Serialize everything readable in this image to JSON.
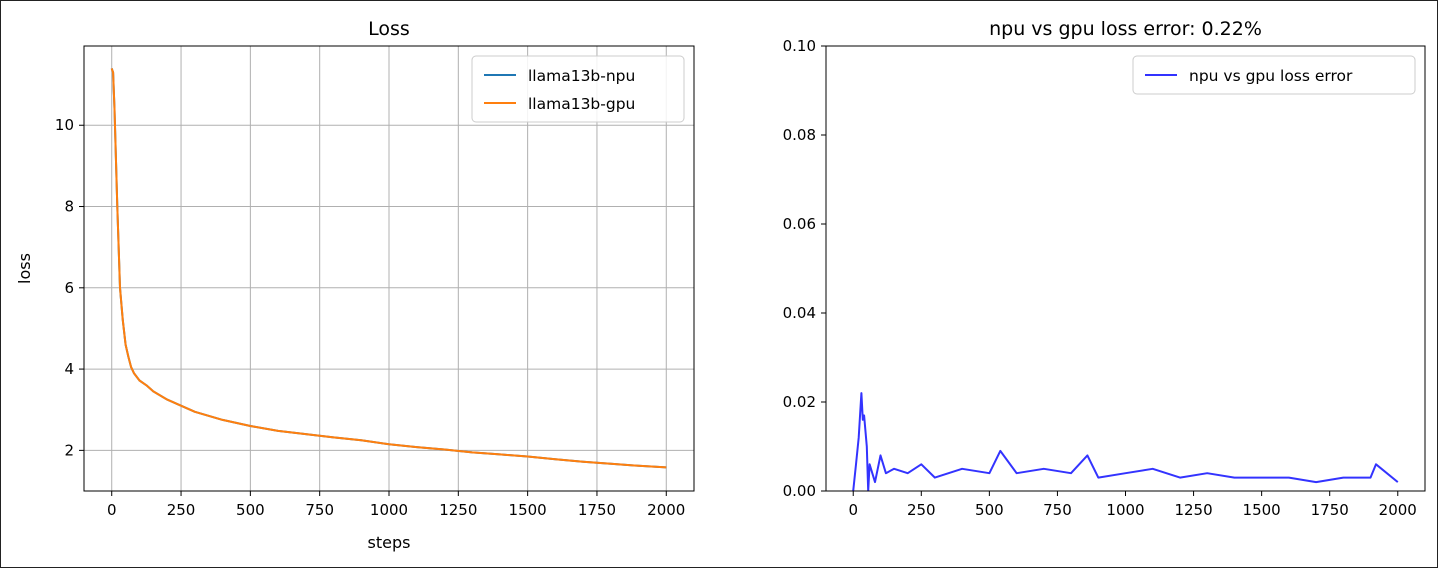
{
  "chart_data": [
    {
      "type": "line",
      "title": "Loss",
      "xlabel": "steps",
      "ylabel": "loss",
      "xlim": [
        -100,
        2100
      ],
      "ylim": [
        1.0,
        11.95
      ],
      "xticks": [
        0,
        250,
        500,
        750,
        1000,
        1250,
        1500,
        1750,
        2000
      ],
      "xtick_labels": [
        "0",
        "250",
        "500",
        "750",
        "1000",
        "1250",
        "1500",
        "1750",
        "2000"
      ],
      "yticks": [
        2,
        4,
        6,
        8,
        10
      ],
      "ytick_labels": [
        "2",
        "4",
        "6",
        "8",
        "10"
      ],
      "grid": true,
      "legend_position": "top-right",
      "series": [
        {
          "name": "llama13b-npu",
          "color": "#1f77b4",
          "x": [
            0,
            5,
            10,
            15,
            20,
            30,
            40,
            50,
            60,
            70,
            80,
            100,
            125,
            150,
            200,
            250,
            300,
            400,
            500,
            600,
            700,
            800,
            900,
            1000,
            1100,
            1200,
            1300,
            1400,
            1500,
            1600,
            1700,
            1800,
            1900,
            2000
          ],
          "y": [
            11.4,
            11.3,
            10.4,
            9.2,
            8.0,
            6.0,
            5.2,
            4.6,
            4.3,
            4.05,
            3.9,
            3.72,
            3.6,
            3.45,
            3.25,
            3.1,
            2.95,
            2.75,
            2.6,
            2.48,
            2.4,
            2.32,
            2.25,
            2.15,
            2.08,
            2.02,
            1.95,
            1.9,
            1.85,
            1.78,
            1.72,
            1.67,
            1.62,
            1.58
          ]
        },
        {
          "name": "llama13b-gpu",
          "color": "#ff7f0e",
          "x": [
            0,
            5,
            10,
            15,
            20,
            30,
            40,
            50,
            60,
            70,
            80,
            100,
            125,
            150,
            200,
            250,
            300,
            400,
            500,
            600,
            700,
            800,
            900,
            1000,
            1100,
            1200,
            1300,
            1400,
            1500,
            1600,
            1700,
            1800,
            1900,
            2000
          ],
          "y": [
            11.4,
            11.3,
            10.4,
            9.2,
            8.0,
            6.0,
            5.2,
            4.6,
            4.3,
            4.05,
            3.9,
            3.72,
            3.6,
            3.45,
            3.25,
            3.1,
            2.95,
            2.75,
            2.6,
            2.48,
            2.4,
            2.32,
            2.25,
            2.15,
            2.08,
            2.02,
            1.95,
            1.9,
            1.85,
            1.78,
            1.72,
            1.67,
            1.62,
            1.58
          ]
        }
      ]
    },
    {
      "type": "line",
      "title": "npu vs gpu loss error: 0.22%",
      "xlabel": "",
      "ylabel": "",
      "xlim": [
        -100,
        2100
      ],
      "ylim": [
        0.0,
        0.1
      ],
      "xticks": [
        0,
        250,
        500,
        750,
        1000,
        1250,
        1500,
        1750,
        2000
      ],
      "xtick_labels": [
        "0",
        "250",
        "500",
        "750",
        "1000",
        "1250",
        "1500",
        "1750",
        "2000"
      ],
      "yticks": [
        0.0,
        0.02,
        0.04,
        0.06,
        0.08,
        0.1
      ],
      "ytick_labels": [
        "0.00",
        "0.02",
        "0.04",
        "0.06",
        "0.08",
        "0.10"
      ],
      "grid": false,
      "legend_position": "top-right",
      "series": [
        {
          "name": "npu vs gpu loss error",
          "color": "#0000ff",
          "x": [
            0,
            10,
            20,
            30,
            35,
            40,
            50,
            55,
            60,
            80,
            100,
            120,
            150,
            200,
            250,
            300,
            400,
            500,
            540,
            600,
            700,
            800,
            860,
            900,
            1000,
            1100,
            1200,
            1300,
            1400,
            1500,
            1600,
            1700,
            1800,
            1900,
            1920,
            2000
          ],
          "y": [
            0.0,
            0.006,
            0.012,
            0.022,
            0.016,
            0.017,
            0.01,
            0.0,
            0.006,
            0.002,
            0.008,
            0.004,
            0.005,
            0.004,
            0.006,
            0.003,
            0.005,
            0.004,
            0.009,
            0.004,
            0.005,
            0.004,
            0.008,
            0.003,
            0.004,
            0.005,
            0.003,
            0.004,
            0.003,
            0.003,
            0.003,
            0.002,
            0.003,
            0.003,
            0.006,
            0.002
          ]
        }
      ]
    }
  ]
}
